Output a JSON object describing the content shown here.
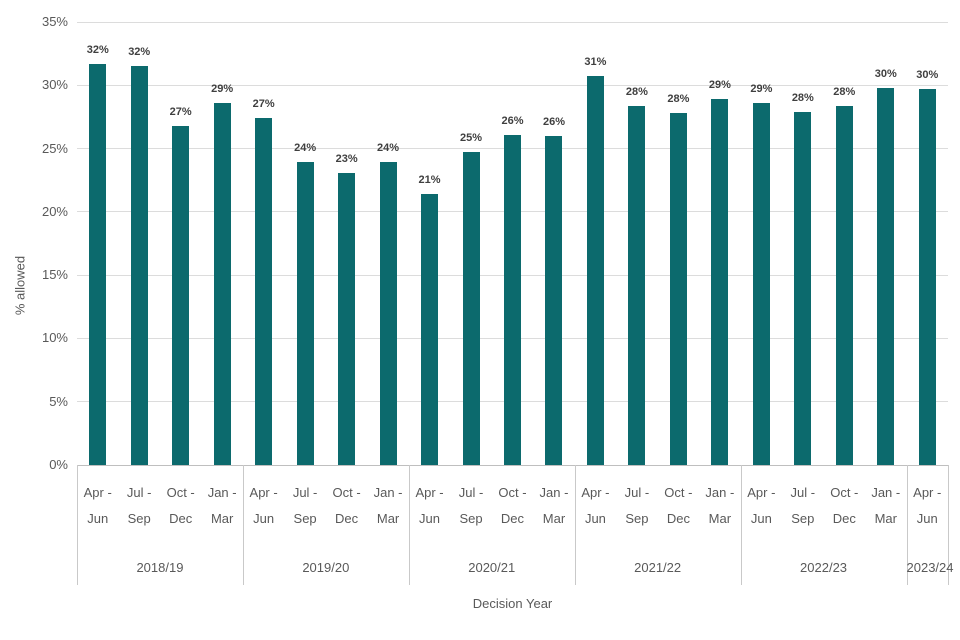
{
  "chart_data": {
    "type": "bar",
    "title": "",
    "ylabel": "% allowed",
    "xlabel": "Decision Year",
    "ylim": [
      0,
      35
    ],
    "y_tick_step": 5,
    "y_tick_labels": [
      "0%",
      "5%",
      "10%",
      "15%",
      "20%",
      "25%",
      "30%",
      "35%"
    ],
    "grid": true,
    "legend": false,
    "bar_color": "#0c6a6d",
    "label_color": "#3f3f3f",
    "axis_text_color": "#595959",
    "groups": [
      {
        "year": "2018/19",
        "bars": [
          {
            "quarter_top": "Apr -",
            "quarter_bottom": "Jun",
            "label": "32%",
            "value": 32,
            "bar_height_pct": 31.7
          },
          {
            "quarter_top": "Jul -",
            "quarter_bottom": "Sep",
            "label": "32%",
            "value": 32,
            "bar_height_pct": 31.5
          },
          {
            "quarter_top": "Oct -",
            "quarter_bottom": "Dec",
            "label": "27%",
            "value": 27,
            "bar_height_pct": 26.8
          },
          {
            "quarter_top": "Jan -",
            "quarter_bottom": "Mar",
            "label": "29%",
            "value": 29,
            "bar_height_pct": 28.6
          }
        ]
      },
      {
        "year": "2019/20",
        "bars": [
          {
            "quarter_top": "Apr -",
            "quarter_bottom": "Jun",
            "label": "27%",
            "value": 27,
            "bar_height_pct": 27.4
          },
          {
            "quarter_top": "Jul -",
            "quarter_bottom": "Sep",
            "label": "24%",
            "value": 24,
            "bar_height_pct": 23.9
          },
          {
            "quarter_top": "Oct -",
            "quarter_bottom": "Dec",
            "label": "23%",
            "value": 23,
            "bar_height_pct": 23.1
          },
          {
            "quarter_top": "Jan -",
            "quarter_bottom": "Mar",
            "label": "24%",
            "value": 24,
            "bar_height_pct": 23.9
          }
        ]
      },
      {
        "year": "2020/21",
        "bars": [
          {
            "quarter_top": "Apr -",
            "quarter_bottom": "Jun",
            "label": "21%",
            "value": 21,
            "bar_height_pct": 21.4
          },
          {
            "quarter_top": "Jul -",
            "quarter_bottom": "Sep",
            "label": "25%",
            "value": 25,
            "bar_height_pct": 24.7
          },
          {
            "quarter_top": "Oct -",
            "quarter_bottom": "Dec",
            "label": "26%",
            "value": 26,
            "bar_height_pct": 26.1
          },
          {
            "quarter_top": "Jan -",
            "quarter_bottom": "Mar",
            "label": "26%",
            "value": 26,
            "bar_height_pct": 26.0
          }
        ]
      },
      {
        "year": "2021/22",
        "bars": [
          {
            "quarter_top": "Apr -",
            "quarter_bottom": "Jun",
            "label": "31%",
            "value": 31,
            "bar_height_pct": 30.7
          },
          {
            "quarter_top": "Jul -",
            "quarter_bottom": "Sep",
            "label": "28%",
            "value": 28,
            "bar_height_pct": 28.4
          },
          {
            "quarter_top": "Oct -",
            "quarter_bottom": "Dec",
            "label": "28%",
            "value": 28,
            "bar_height_pct": 27.8
          },
          {
            "quarter_top": "Jan -",
            "quarter_bottom": "Mar",
            "label": "29%",
            "value": 29,
            "bar_height_pct": 28.9
          }
        ]
      },
      {
        "year": "2022/23",
        "bars": [
          {
            "quarter_top": "Apr -",
            "quarter_bottom": "Jun",
            "label": "29%",
            "value": 29,
            "bar_height_pct": 28.6
          },
          {
            "quarter_top": "Jul -",
            "quarter_bottom": "Sep",
            "label": "28%",
            "value": 28,
            "bar_height_pct": 27.9
          },
          {
            "quarter_top": "Oct -",
            "quarter_bottom": "Dec",
            "label": "28%",
            "value": 28,
            "bar_height_pct": 28.4
          },
          {
            "quarter_top": "Jan -",
            "quarter_bottom": "Mar",
            "label": "30%",
            "value": 30,
            "bar_height_pct": 29.8
          }
        ]
      },
      {
        "year": "2023/24",
        "bars": [
          {
            "quarter_top": "Apr -",
            "quarter_bottom": "Jun",
            "label": "30%",
            "value": 30,
            "bar_height_pct": 29.7
          }
        ]
      }
    ]
  }
}
